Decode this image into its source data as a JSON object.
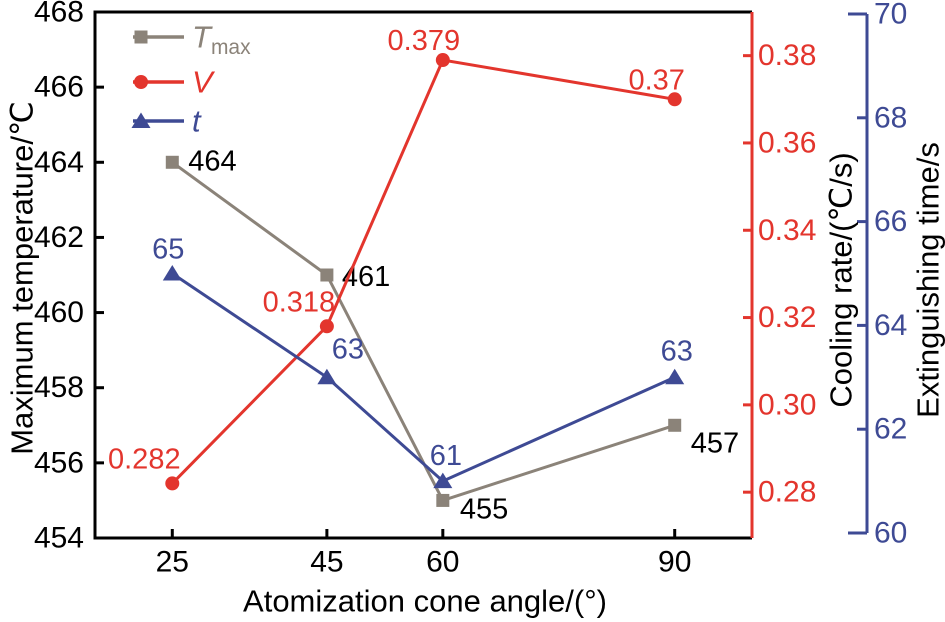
{
  "chart_data": {
    "type": "line",
    "title": "",
    "grid": false,
    "x_axis": {
      "label": "Atomization cone angle/(°)",
      "tick_labels": [
        "25",
        "45",
        "60",
        "90"
      ],
      "tick_values": [
        25,
        45,
        60,
        90
      ],
      "lim": [
        15,
        100
      ]
    },
    "axes": {
      "left": {
        "label": "Maximum temperature/℃",
        "tick_labels": [
          "454",
          "456",
          "458",
          "460",
          "462",
          "464",
          "466",
          "468"
        ],
        "tick_values": [
          454,
          456,
          458,
          460,
          462,
          464,
          466,
          468
        ],
        "lim": [
          454,
          468
        ],
        "color": "#000000"
      },
      "cooling": {
        "label": "Cooling rate/(℃/s)",
        "tick_labels": [
          "0.28",
          "0.30",
          "0.32",
          "0.34",
          "0.36",
          "0.38"
        ],
        "tick_values": [
          0.28,
          0.3,
          0.32,
          0.34,
          0.36,
          0.38
        ],
        "lim": [
          0.2695,
          0.39
        ],
        "color": "#e3352d"
      },
      "time": {
        "label": "Extinguishing time/s",
        "tick_labels": [
          "60",
          "62",
          "64",
          "66",
          "68",
          "70"
        ],
        "tick_values": [
          60,
          62,
          64,
          66,
          68,
          70
        ],
        "lim": [
          60,
          70
        ],
        "color": "#3e4a94"
      }
    },
    "series": [
      {
        "name": "T_max",
        "axis": "left",
        "marker": "square",
        "color": "#8b8379",
        "label_color": "#000000",
        "x": [
          25,
          45,
          60,
          90
        ],
        "values": [
          464,
          461,
          455,
          457
        ],
        "point_labels": [
          "464",
          "461",
          "455",
          "457"
        ],
        "label_anchor": "start",
        "label_offsets": [
          [
            16,
            -1
          ],
          [
            15,
            2
          ],
          [
            17,
            9
          ],
          [
            16,
            18
          ]
        ]
      },
      {
        "name": "V",
        "axis": "cooling",
        "marker": "circle",
        "color": "#e3352d",
        "label_color": "#e3352d",
        "x": [
          25,
          45,
          60,
          90
        ],
        "values": [
          0.282,
          0.318,
          0.379,
          0.37
        ],
        "point_labels": [
          "0.282",
          "0.318",
          "0.379",
          "0.37"
        ],
        "label_anchor": "middle",
        "label_offsets": [
          [
            -28,
            -24
          ],
          [
            -28,
            -24
          ],
          [
            -19,
            -19
          ],
          [
            -18,
            -19
          ]
        ]
      },
      {
        "name": "t",
        "axis": "time",
        "marker": "triangle",
        "color": "#3e4a94",
        "label_color": "#3e4a94",
        "x": [
          25,
          45,
          60,
          90
        ],
        "values": [
          65,
          63,
          61,
          63
        ],
        "point_labels": [
          "65",
          "63",
          "61",
          "63"
        ],
        "label_anchor": "middle",
        "label_offsets": [
          [
            -4,
            -24
          ],
          [
            21,
            -28
          ],
          [
            3,
            -25
          ],
          [
            2,
            -26
          ]
        ]
      }
    ],
    "legend": {
      "position": "top-left",
      "items": [
        {
          "series": "T_max",
          "text": "T",
          "subscript": "max"
        },
        {
          "series": "V",
          "text": "V",
          "subscript": ""
        },
        {
          "series": "t",
          "text": "t",
          "subscript": ""
        }
      ]
    }
  }
}
